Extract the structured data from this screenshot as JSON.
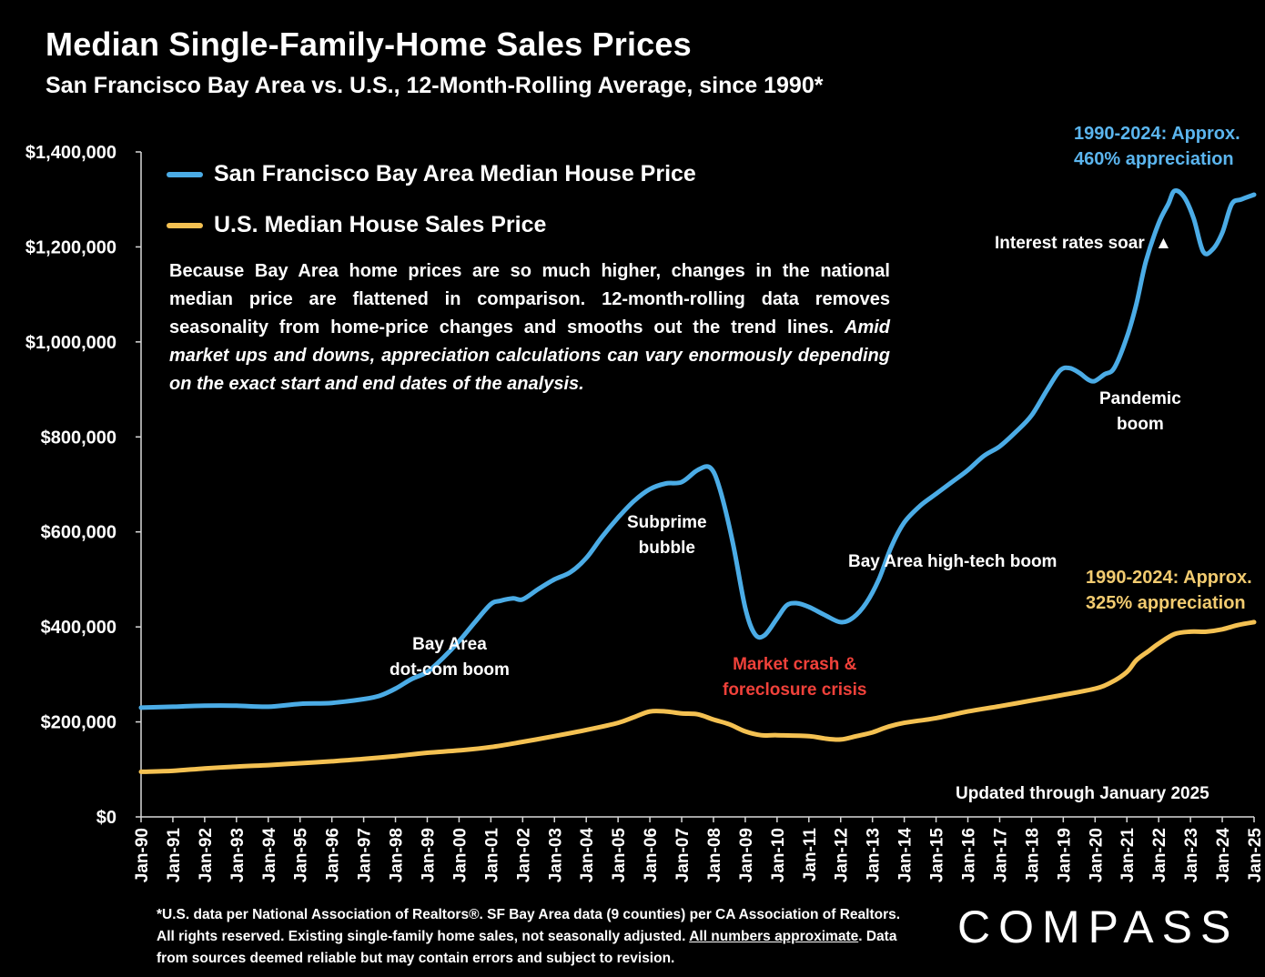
{
  "title": "Median Single-Family-Home Sales Prices",
  "subtitle": "San Francisco Bay Area vs. U.S., 12-Month-Rolling Average, since 1990*",
  "legend": {
    "bay": "San Francisco Bay Area Median House Price",
    "us": "U.S. Median House Sales Price"
  },
  "description": {
    "normal": "Because Bay Area home prices are so much higher, changes in the national median price are flattened in comparison. 12-month-rolling data removes seasonality from home-price changes and smooths out the trend lines.",
    "italic": "Amid market ups and downs, appreciation calculations can vary enormously depending on the exact start and end dates of the analysis."
  },
  "annotations": {
    "bay_appreciation_1": "1990-2024: Approx.",
    "bay_appreciation_2": "460% appreciation",
    "us_appreciation_1": "1990-2024: Approx.",
    "us_appreciation_2": "325% appreciation",
    "interest_rates": "Interest rates soar",
    "pandemic_1": "Pandemic",
    "pandemic_2": "boom",
    "subprime_1": "Subprime",
    "subprime_2": "bubble",
    "hightech": "Bay Area high-tech boom",
    "dotcom_1": "Bay Area",
    "dotcom_2": "dot-com boom",
    "crash_1": "Market crash &",
    "crash_2": "foreclosure crisis",
    "updated": "Updated through January 2025"
  },
  "footnote": {
    "part1": "*U.S. data per National Association of Realtors®. SF Bay Area data (9 counties) per CA Association of Realtors. All rights reserved. Existing single-family home sales, not seasonally adjusted.",
    "underlined": "All numbers approximate",
    "part2": ". Data from sources deemed reliable but may contain errors and subject to revision."
  },
  "logo": "COMPASS",
  "colors": {
    "bay": "#4BACE6",
    "us": "#F4C152",
    "crash": "#F0413A",
    "bay_note": "#5BB5EE",
    "us_note": "#F2CB70",
    "background": "#000000"
  },
  "chart_data": {
    "type": "line",
    "title": "Median Single-Family-Home Sales Prices",
    "xlabel": "",
    "ylabel": "",
    "ylim": [
      0,
      1400000
    ],
    "yticks": [
      0,
      200000,
      400000,
      600000,
      800000,
      1000000,
      1200000,
      1400000
    ],
    "ytick_labels": [
      "$0",
      "$200,000",
      "$400,000",
      "$600,000",
      "$800,000",
      "$1,000,000",
      "$1,200,000",
      "$1,400,000"
    ],
    "xlim": [
      1990,
      2025
    ],
    "categories": [
      "Jan-90",
      "Jan-91",
      "Jan-92",
      "Jan-93",
      "Jan-94",
      "Jan-95",
      "Jan-96",
      "Jan-97",
      "Jan-98",
      "Jan-99",
      "Jan-00",
      "Jan-01",
      "Jan-02",
      "Jan-03",
      "Jan-04",
      "Jan-05",
      "Jan-06",
      "Jan-07",
      "Jan-08",
      "Jan-09",
      "Jan-10",
      "Jan-11",
      "Jan-12",
      "Jan-13",
      "Jan-14",
      "Jan-15",
      "Jan-16",
      "Jan-17",
      "Jan-18",
      "Jan-19",
      "Jan-20",
      "Jan-21",
      "Jan-22",
      "Jan-23",
      "Jan-24",
      "Jan-25"
    ],
    "series": [
      {
        "name": "San Francisco Bay Area Median House Price",
        "points": [
          [
            1990.0,
            230000
          ],
          [
            1991.0,
            232000
          ],
          [
            1992.0,
            234000
          ],
          [
            1993.0,
            234000
          ],
          [
            1994.0,
            232000
          ],
          [
            1995.0,
            238000
          ],
          [
            1996.0,
            240000
          ],
          [
            1997.0,
            248000
          ],
          [
            1997.5,
            255000
          ],
          [
            1998.0,
            270000
          ],
          [
            1998.5,
            290000
          ],
          [
            1999.0,
            305000
          ],
          [
            1999.5,
            335000
          ],
          [
            2000.0,
            370000
          ],
          [
            2000.5,
            410000
          ],
          [
            2001.0,
            448000
          ],
          [
            2001.3,
            455000
          ],
          [
            2001.7,
            460000
          ],
          [
            2002.0,
            458000
          ],
          [
            2002.5,
            480000
          ],
          [
            2003.0,
            500000
          ],
          [
            2003.5,
            515000
          ],
          [
            2004.0,
            545000
          ],
          [
            2004.5,
            590000
          ],
          [
            2005.0,
            630000
          ],
          [
            2005.5,
            665000
          ],
          [
            2006.0,
            690000
          ],
          [
            2006.5,
            702000
          ],
          [
            2007.0,
            705000
          ],
          [
            2007.5,
            730000
          ],
          [
            2007.9,
            735000
          ],
          [
            2008.2,
            690000
          ],
          [
            2008.6,
            580000
          ],
          [
            2009.0,
            440000
          ],
          [
            2009.3,
            385000
          ],
          [
            2009.6,
            382000
          ],
          [
            2010.0,
            418000
          ],
          [
            2010.3,
            445000
          ],
          [
            2010.6,
            450000
          ],
          [
            2011.0,
            442000
          ],
          [
            2011.5,
            425000
          ],
          [
            2012.0,
            410000
          ],
          [
            2012.4,
            420000
          ],
          [
            2012.8,
            450000
          ],
          [
            2013.2,
            500000
          ],
          [
            2013.6,
            570000
          ],
          [
            2014.0,
            620000
          ],
          [
            2014.5,
            655000
          ],
          [
            2015.0,
            680000
          ],
          [
            2015.5,
            705000
          ],
          [
            2016.0,
            730000
          ],
          [
            2016.5,
            760000
          ],
          [
            2017.0,
            780000
          ],
          [
            2017.5,
            810000
          ],
          [
            2018.0,
            845000
          ],
          [
            2018.5,
            900000
          ],
          [
            2018.9,
            940000
          ],
          [
            2019.2,
            945000
          ],
          [
            2019.5,
            935000
          ],
          [
            2019.8,
            920000
          ],
          [
            2020.0,
            918000
          ],
          [
            2020.3,
            932000
          ],
          [
            2020.6,
            945000
          ],
          [
            2021.0,
            1010000
          ],
          [
            2021.3,
            1080000
          ],
          [
            2021.6,
            1170000
          ],
          [
            2022.0,
            1250000
          ],
          [
            2022.3,
            1290000
          ],
          [
            2022.5,
            1318000
          ],
          [
            2022.8,
            1305000
          ],
          [
            2023.1,
            1260000
          ],
          [
            2023.4,
            1190000
          ],
          [
            2023.7,
            1195000
          ],
          [
            2024.0,
            1230000
          ],
          [
            2024.3,
            1290000
          ],
          [
            2024.6,
            1300000
          ],
          [
            2025.0,
            1310000
          ]
        ]
      },
      {
        "name": "U.S. Median House Sales Price",
        "points": [
          [
            1990.0,
            95000
          ],
          [
            1991.0,
            97000
          ],
          [
            1992.0,
            102000
          ],
          [
            1993.0,
            106000
          ],
          [
            1994.0,
            109000
          ],
          [
            1995.0,
            113000
          ],
          [
            1996.0,
            117000
          ],
          [
            1997.0,
            122000
          ],
          [
            1998.0,
            128000
          ],
          [
            1999.0,
            135000
          ],
          [
            2000.0,
            140000
          ],
          [
            2001.0,
            147000
          ],
          [
            2002.0,
            158000
          ],
          [
            2003.0,
            170000
          ],
          [
            2004.0,
            183000
          ],
          [
            2005.0,
            198000
          ],
          [
            2005.5,
            210000
          ],
          [
            2006.0,
            222000
          ],
          [
            2006.5,
            222000
          ],
          [
            2007.0,
            218000
          ],
          [
            2007.5,
            216000
          ],
          [
            2008.0,
            205000
          ],
          [
            2008.5,
            195000
          ],
          [
            2009.0,
            180000
          ],
          [
            2009.5,
            172000
          ],
          [
            2010.0,
            172000
          ],
          [
            2011.0,
            170000
          ],
          [
            2011.5,
            165000
          ],
          [
            2012.0,
            163000
          ],
          [
            2012.5,
            170000
          ],
          [
            2013.0,
            178000
          ],
          [
            2013.5,
            190000
          ],
          [
            2014.0,
            198000
          ],
          [
            2015.0,
            208000
          ],
          [
            2016.0,
            222000
          ],
          [
            2017.0,
            233000
          ],
          [
            2018.0,
            245000
          ],
          [
            2019.0,
            257000
          ],
          [
            2020.0,
            270000
          ],
          [
            2020.5,
            283000
          ],
          [
            2021.0,
            305000
          ],
          [
            2021.3,
            330000
          ],
          [
            2021.7,
            350000
          ],
          [
            2022.0,
            365000
          ],
          [
            2022.5,
            385000
          ],
          [
            2023.0,
            390000
          ],
          [
            2023.5,
            390000
          ],
          [
            2024.0,
            395000
          ],
          [
            2024.5,
            404000
          ],
          [
            2025.0,
            410000
          ]
        ]
      }
    ]
  }
}
